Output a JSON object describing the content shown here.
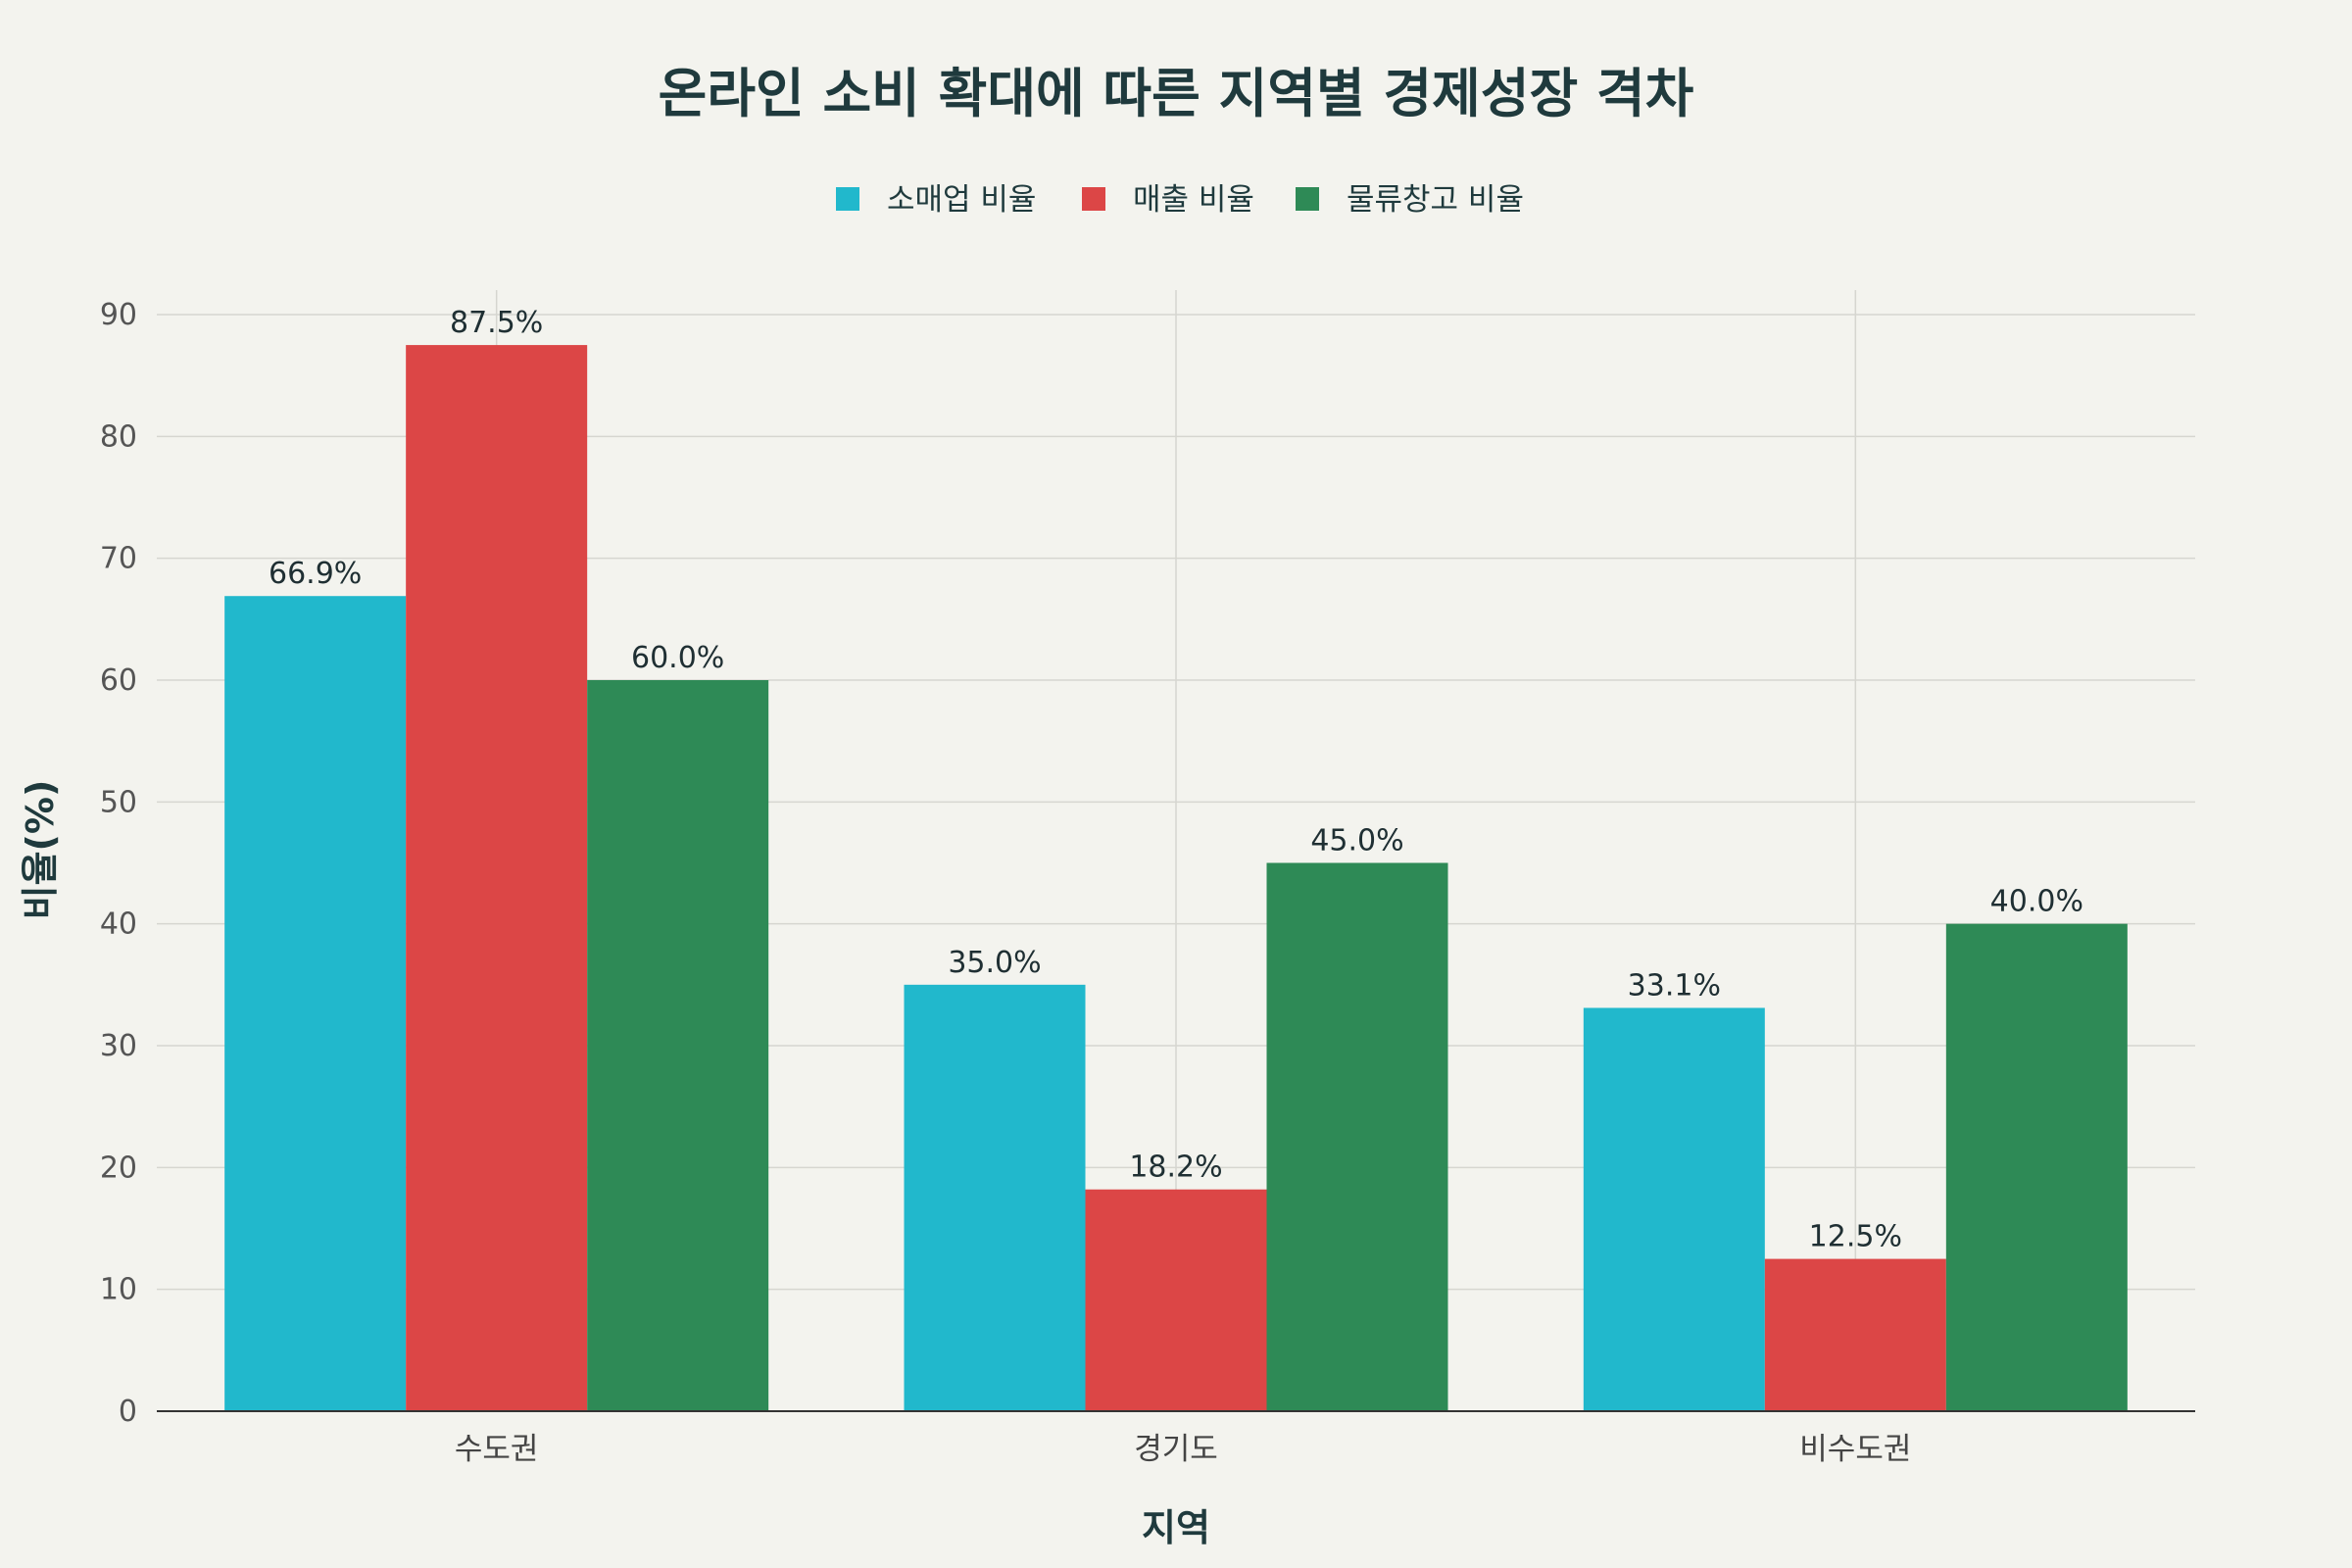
{
  "chart_data": {
    "type": "bar",
    "title": "온라인 소비 확대에 따른 지역별 경제성장 격차",
    "xlabel": "지역",
    "ylabel": "비율(%)",
    "ylim": [
      0,
      90
    ],
    "yticks": [
      0,
      10,
      20,
      30,
      40,
      50,
      60,
      70,
      80,
      90
    ],
    "categories": [
      "수도권",
      "경기도",
      "비수도권"
    ],
    "legend_position": "top-center",
    "grid": true,
    "series": [
      {
        "name": "소매업 비율",
        "color": "#21b8cc",
        "values": [
          66.9,
          35.0,
          33.1
        ],
        "labels": [
          "66.9%",
          "35.0%",
          "33.1%"
        ]
      },
      {
        "name": "매출 비율",
        "color": "#dc4646",
        "values": [
          87.5,
          18.2,
          12.5
        ],
        "labels": [
          "87.5%",
          "18.2%",
          "12.5%"
        ]
      },
      {
        "name": "물류창고 비율",
        "color": "#2e8a56",
        "values": [
          60.0,
          45.0,
          40.0
        ],
        "labels": [
          "60.0%",
          "45.0%",
          "40.0%"
        ]
      }
    ]
  }
}
